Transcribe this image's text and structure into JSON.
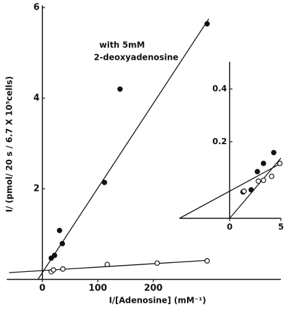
{
  "chart_data": [
    {
      "type": "scatter",
      "x_label": "I/[Adenosine]   (mM⁻¹)",
      "y_label": "I/ (pmol/ 20 s / 6.7 X 10⁵cells)",
      "annotations": [
        "with 5mM",
        "2-deoxyadenosine"
      ],
      "xlim": [
        -64,
        430
      ],
      "ylim": [
        0,
        6
      ],
      "xticks": [
        0,
        100,
        200
      ],
      "yticks": [
        2,
        4,
        6
      ],
      "color": "#111111",
      "series": [
        {
          "marker": "filled",
          "x": [
            16,
            22,
            31,
            36,
            112,
            140,
            297
          ],
          "values": [
            0.47,
            0.53,
            1.08,
            0.79,
            2.14,
            4.2,
            5.64
          ]
        },
        {
          "marker": "open",
          "x": [
            16,
            20,
            37,
            117,
            207,
            297
          ],
          "values": [
            0.17,
            0.21,
            0.23,
            0.33,
            0.36,
            0.41
          ]
        }
      ],
      "fit_lines": [
        {
          "x": [
            -8,
            300
          ],
          "values": [
            0,
            5.75
          ]
        },
        {
          "x": [
            -60,
            297
          ],
          "values": [
            0.15,
            0.42
          ]
        }
      ]
    },
    {
      "type": "scatter",
      "xlim": [
        -4.9,
        5
      ],
      "ylim": [
        -0.09,
        0.49
      ],
      "xticks": [
        0,
        5
      ],
      "yticks": [
        0.2,
        0.4
      ],
      "color": "#111111",
      "series": [
        {
          "marker": "filled",
          "x": [
            1.3,
            2.1,
            2.7,
            3.3,
            4.3
          ],
          "values": [
            0.01,
            0.018,
            0.087,
            0.118,
            0.159
          ]
        },
        {
          "marker": "open",
          "x": [
            1.4,
            2.8,
            3.3,
            4.1,
            4.9
          ],
          "values": [
            0.013,
            0.051,
            0.054,
            0.069,
            0.118
          ]
        }
      ],
      "fit_lines": [
        {
          "x": [
            0,
            5
          ],
          "values": [
            -0.09,
            0.138
          ]
        },
        {
          "x": [
            -4.9,
            5
          ],
          "values": [
            -0.09,
            0.118
          ]
        }
      ]
    }
  ]
}
